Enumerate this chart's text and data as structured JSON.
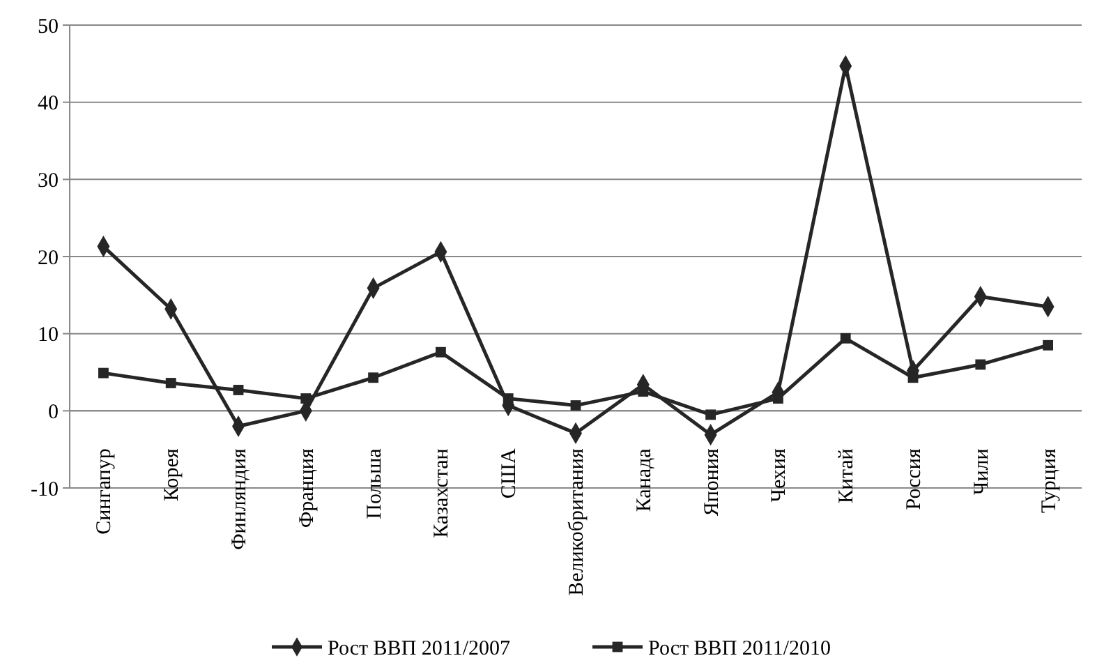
{
  "chart_data": {
    "type": "line",
    "categories": [
      "Сингапур",
      "Корея",
      "Финляндия",
      "Франция",
      "Польша",
      "Казахстан",
      "США",
      "Великобритания",
      "Канада",
      "Япония",
      "Чехия",
      "Китай",
      "Россия",
      "Чили",
      "Турция"
    ],
    "series": [
      {
        "name": "Рост ВВП 2011/2007",
        "color": "#262626",
        "marker": "diamond",
        "values": [
          21.3,
          13.2,
          -2,
          0,
          15.9,
          20.6,
          0.7,
          -2.9,
          3.4,
          -3.1,
          2.4,
          44.7,
          5.2,
          14.8,
          13.5
        ]
      },
      {
        "name": "Рост ВВП 2011/2010",
        "color": "#262626",
        "marker": "square",
        "values": [
          4.9,
          3.6,
          2.7,
          1.6,
          4.3,
          7.6,
          1.6,
          0.7,
          2.5,
          -0.5,
          1.6,
          9.4,
          4.3,
          6,
          8.5
        ]
      }
    ],
    "ylim": [
      -10,
      50
    ],
    "yticks": [
      -10,
      0,
      10,
      20,
      30,
      40,
      50
    ],
    "grid": "y",
    "legend": "bottom"
  }
}
